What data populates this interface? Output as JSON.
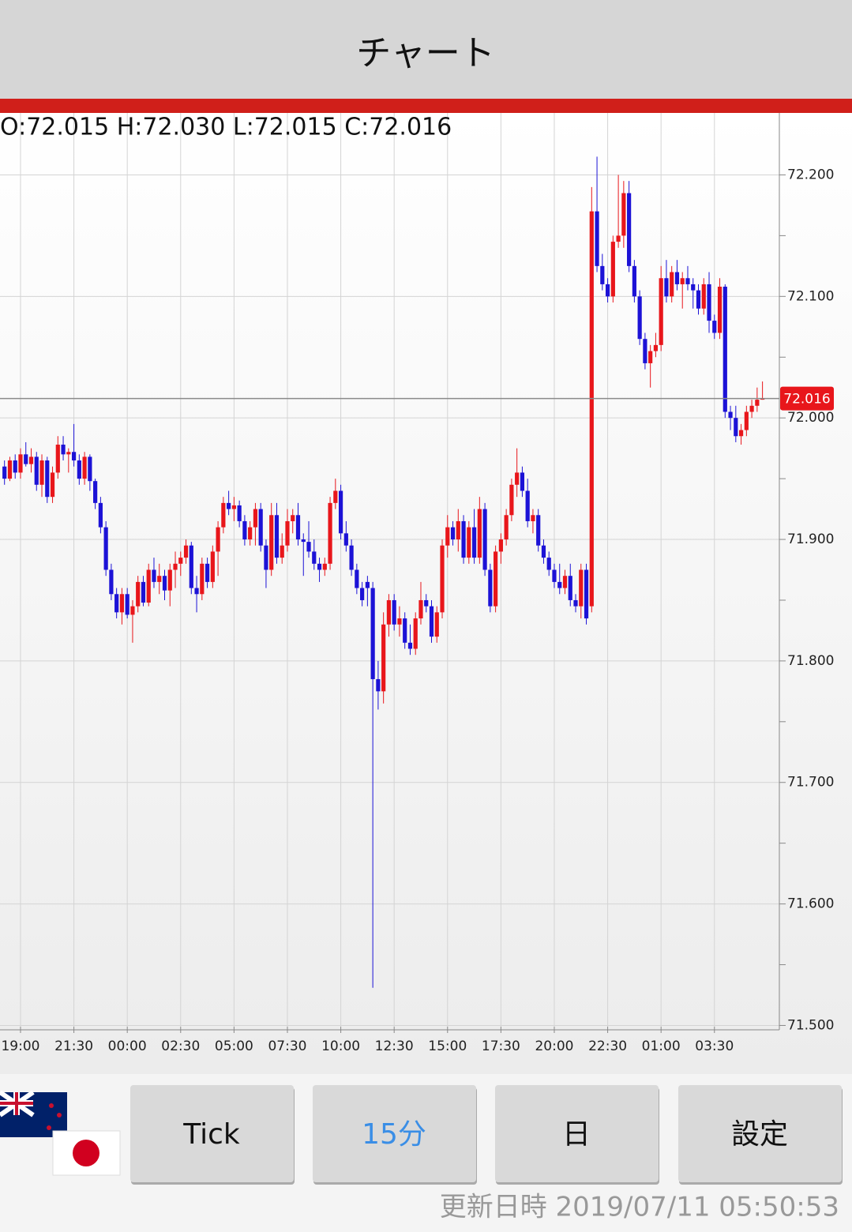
{
  "header": {
    "title": "チャート"
  },
  "chart_data": {
    "type": "candlestick",
    "ohlc_text": "O:72.015 H:72.030 L:72.015 C:72.016",
    "categories": [
      null,
      null,
      null,
      "19:00",
      null,
      null,
      null,
      null,
      null,
      null,
      null,
      null,
      null,
      "21:30",
      null,
      null,
      null,
      null,
      null,
      null,
      null,
      null,
      null,
      "00:00",
      null,
      null,
      null,
      null,
      null,
      null,
      null,
      null,
      null,
      "02:30",
      null,
      null,
      null,
      null,
      null,
      null,
      null,
      null,
      null,
      "05:00",
      null,
      null,
      null,
      null,
      null,
      null,
      null,
      null,
      null,
      "07:30",
      null,
      null,
      null,
      null,
      null,
      null,
      null,
      null,
      null,
      "10:00",
      null,
      null,
      null,
      null,
      null,
      null,
      null,
      null,
      null,
      "12:30",
      null,
      null,
      null,
      null,
      null,
      null,
      null,
      null,
      null,
      "15:00",
      null,
      null,
      null,
      null,
      null,
      null,
      null,
      null,
      null,
      "17:30",
      null,
      null,
      null,
      null,
      null,
      null,
      null,
      null,
      null,
      "20:00",
      null,
      null,
      null,
      null,
      null,
      null,
      null,
      null,
      null,
      "22:30",
      null,
      null,
      null,
      null,
      null,
      null,
      null,
      null,
      null,
      "01:00",
      null,
      null,
      null,
      null,
      null,
      null,
      null,
      null,
      null,
      "03:30",
      null,
      null,
      null,
      null,
      null,
      null,
      null,
      null,
      null
    ],
    "candles": [
      [
        71.96,
        71.965,
        71.945,
        71.95
      ],
      [
        71.95,
        71.968,
        71.948,
        71.965
      ],
      [
        71.965,
        71.97,
        71.95,
        71.955
      ],
      [
        71.955,
        71.975,
        71.95,
        71.97
      ],
      [
        71.97,
        71.98,
        71.96,
        71.962
      ],
      [
        71.962,
        71.975,
        71.955,
        71.968
      ],
      [
        71.968,
        71.972,
        71.94,
        71.945
      ],
      [
        71.945,
        71.97,
        71.935,
        71.965
      ],
      [
        71.965,
        71.968,
        71.93,
        71.935
      ],
      [
        71.935,
        71.96,
        71.93,
        71.955
      ],
      [
        71.955,
        71.985,
        71.95,
        71.978
      ],
      [
        71.978,
        71.985,
        71.965,
        71.97
      ],
      [
        71.97,
        71.975,
        71.955,
        71.972
      ],
      [
        71.972,
        71.995,
        71.96,
        71.965
      ],
      [
        71.965,
        71.97,
        71.945,
        71.95
      ],
      [
        71.95,
        71.972,
        71.945,
        71.968
      ],
      [
        71.968,
        71.97,
        71.94,
        71.948
      ],
      [
        71.948,
        71.95,
        71.925,
        71.93
      ],
      [
        71.93,
        71.935,
        71.905,
        71.91
      ],
      [
        71.91,
        71.915,
        71.87,
        71.875
      ],
      [
        71.875,
        71.88,
        71.85,
        71.855
      ],
      [
        71.855,
        71.86,
        71.835,
        71.84
      ],
      [
        71.84,
        71.86,
        71.83,
        71.855
      ],
      [
        71.855,
        71.86,
        71.835,
        71.838
      ],
      [
        71.838,
        71.85,
        71.815,
        71.845
      ],
      [
        71.845,
        71.87,
        71.84,
        71.865
      ],
      [
        71.865,
        71.87,
        71.845,
        71.848
      ],
      [
        71.848,
        71.88,
        71.845,
        71.875
      ],
      [
        71.875,
        71.885,
        71.86,
        71.865
      ],
      [
        71.865,
        71.88,
        71.855,
        71.87
      ],
      [
        71.87,
        71.875,
        71.85,
        71.858
      ],
      [
        71.858,
        71.88,
        71.845,
        71.875
      ],
      [
        71.875,
        71.89,
        71.86,
        71.88
      ],
      [
        71.88,
        71.89,
        71.87,
        71.885
      ],
      [
        71.885,
        71.9,
        71.88,
        71.895
      ],
      [
        71.895,
        71.898,
        71.855,
        71.86
      ],
      [
        71.86,
        71.87,
        71.84,
        71.855
      ],
      [
        71.855,
        71.885,
        71.85,
        71.88
      ],
      [
        71.88,
        71.885,
        71.86,
        71.865
      ],
      [
        71.865,
        71.895,
        71.86,
        71.89
      ],
      [
        71.89,
        71.915,
        71.87,
        71.91
      ],
      [
        71.91,
        71.935,
        71.905,
        71.93
      ],
      [
        71.93,
        71.94,
        71.92,
        71.925
      ],
      [
        71.925,
        71.935,
        71.915,
        71.928
      ],
      [
        71.928,
        71.932,
        71.91,
        71.915
      ],
      [
        71.915,
        71.92,
        71.895,
        71.9
      ],
      [
        71.9,
        71.915,
        71.895,
        71.91
      ],
      [
        71.91,
        71.93,
        71.895,
        71.925
      ],
      [
        71.925,
        71.93,
        71.89,
        71.895
      ],
      [
        71.895,
        71.9,
        71.86,
        71.875
      ],
      [
        71.875,
        71.93,
        71.87,
        71.92
      ],
      [
        71.92,
        71.93,
        71.88,
        71.885
      ],
      [
        71.885,
        71.905,
        71.88,
        71.895
      ],
      [
        71.895,
        71.925,
        71.89,
        71.915
      ],
      [
        71.915,
        71.925,
        71.905,
        71.92
      ],
      [
        71.92,
        71.93,
        71.895,
        71.9
      ],
      [
        71.9,
        71.905,
        71.87,
        71.898
      ],
      [
        71.898,
        71.915,
        71.885,
        71.89
      ],
      [
        71.89,
        71.9,
        71.875,
        71.88
      ],
      [
        71.88,
        71.885,
        71.865,
        71.875
      ],
      [
        71.875,
        71.885,
        71.87,
        71.88
      ],
      [
        71.88,
        71.935,
        71.875,
        71.93
      ],
      [
        71.93,
        71.95,
        71.925,
        71.94
      ],
      [
        71.94,
        71.945,
        71.9,
        71.905
      ],
      [
        71.905,
        71.915,
        71.89,
        71.895
      ],
      [
        71.895,
        71.9,
        71.87,
        71.875
      ],
      [
        71.875,
        71.88,
        71.855,
        71.86
      ],
      [
        71.86,
        71.865,
        71.845,
        71.85
      ],
      [
        71.865,
        71.87,
        71.845,
        71.86
      ],
      [
        71.86,
        71.865,
        71.531,
        71.785
      ],
      [
        71.785,
        71.8,
        71.76,
        71.775
      ],
      [
        71.775,
        71.84,
        71.765,
        71.83
      ],
      [
        71.83,
        71.855,
        71.82,
        71.85
      ],
      [
        71.85,
        71.855,
        71.825,
        71.83
      ],
      [
        71.83,
        71.845,
        71.82,
        71.835
      ],
      [
        71.835,
        71.84,
        71.81,
        71.815
      ],
      [
        71.815,
        71.83,
        71.805,
        71.81
      ],
      [
        71.81,
        71.84,
        71.805,
        71.835
      ],
      [
        71.835,
        71.865,
        71.83,
        71.85
      ],
      [
        71.85,
        71.855,
        71.84,
        71.845
      ],
      [
        71.845,
        71.85,
        71.815,
        71.82
      ],
      [
        71.82,
        71.845,
        71.815,
        71.84
      ],
      [
        71.84,
        71.9,
        71.835,
        71.895
      ],
      [
        71.895,
        71.92,
        71.885,
        71.91
      ],
      [
        71.91,
        71.915,
        71.895,
        71.9
      ],
      [
        71.9,
        71.925,
        71.89,
        71.915
      ],
      [
        71.915,
        71.92,
        71.88,
        71.885
      ],
      [
        71.885,
        71.915,
        71.88,
        71.91
      ],
      [
        71.91,
        71.925,
        71.88,
        71.885
      ],
      [
        71.885,
        71.935,
        71.88,
        71.925
      ],
      [
        71.925,
        71.93,
        71.87,
        71.875
      ],
      [
        71.875,
        71.88,
        71.84,
        71.845
      ],
      [
        71.845,
        71.895,
        71.84,
        71.89
      ],
      [
        71.89,
        71.905,
        71.88,
        71.9
      ],
      [
        71.9,
        71.925,
        71.895,
        71.92
      ],
      [
        71.92,
        71.95,
        71.915,
        71.945
      ],
      [
        71.945,
        71.975,
        71.935,
        71.955
      ],
      [
        71.955,
        71.96,
        71.935,
        71.94
      ],
      [
        71.94,
        71.95,
        71.91,
        71.915
      ],
      [
        71.915,
        71.925,
        71.905,
        71.92
      ],
      [
        71.92,
        71.925,
        71.89,
        71.895
      ],
      [
        71.895,
        71.9,
        71.88,
        71.885
      ],
      [
        71.885,
        71.89,
        71.87,
        71.875
      ],
      [
        71.875,
        71.88,
        71.86,
        71.865
      ],
      [
        71.865,
        71.88,
        71.855,
        71.86
      ],
      [
        71.86,
        71.875,
        71.855,
        71.87
      ],
      [
        71.87,
        71.88,
        71.845,
        71.85
      ],
      [
        71.85,
        71.855,
        71.84,
        71.845
      ],
      [
        71.845,
        71.88,
        71.835,
        71.875
      ],
      [
        71.875,
        71.88,
        71.83,
        71.835
      ],
      [
        71.845,
        72.19,
        71.84,
        72.17
      ],
      [
        72.17,
        72.215,
        72.12,
        72.125
      ],
      [
        72.125,
        72.135,
        72.105,
        72.11
      ],
      [
        72.11,
        72.115,
        72.095,
        72.1
      ],
      [
        72.1,
        72.15,
        72.095,
        72.145
      ],
      [
        72.145,
        72.2,
        72.14,
        72.15
      ],
      [
        72.15,
        72.195,
        72.14,
        72.185
      ],
      [
        72.185,
        72.195,
        72.12,
        72.125
      ],
      [
        72.125,
        72.13,
        72.095,
        72.1
      ],
      [
        72.1,
        72.105,
        72.06,
        72.065
      ],
      [
        72.065,
        72.07,
        72.04,
        72.045
      ],
      [
        72.045,
        72.06,
        72.025,
        72.055
      ],
      [
        72.055,
        72.07,
        72.05,
        72.06
      ],
      [
        72.06,
        72.125,
        72.055,
        72.115
      ],
      [
        72.115,
        72.13,
        72.095,
        72.1
      ],
      [
        72.1,
        72.125,
        72.095,
        72.12
      ],
      [
        72.12,
        72.13,
        72.105,
        72.11
      ],
      [
        72.11,
        72.12,
        72.09,
        72.115
      ],
      [
        72.115,
        72.125,
        72.105,
        72.11
      ],
      [
        72.11,
        72.115,
        72.09,
        72.105
      ],
      [
        72.105,
        72.11,
        72.085,
        72.09
      ],
      [
        72.09,
        72.115,
        72.085,
        72.11
      ],
      [
        72.11,
        72.12,
        72.07,
        72.08
      ],
      [
        72.08,
        72.085,
        72.065,
        72.07
      ],
      [
        72.07,
        72.115,
        72.065,
        72.108
      ],
      [
        72.108,
        72.11,
        72.0,
        72.005
      ],
      [
        72.005,
        72.01,
        71.99,
        72.0
      ],
      [
        72.0,
        72.01,
        71.98,
        71.985
      ],
      [
        71.985,
        71.995,
        71.978,
        71.99
      ],
      [
        71.99,
        72.01,
        71.985,
        72.005
      ],
      [
        72.005,
        72.015,
        72.0,
        72.01
      ],
      [
        72.01,
        72.025,
        72.005,
        72.015
      ],
      [
        72.015,
        72.03,
        72.015,
        72.016
      ]
    ],
    "up_color": "#e8161b",
    "down_color": "#1c12d6",
    "ylim": [
      71.499,
      72.251
    ],
    "yticks": [
      {
        "value": 71.5,
        "label": "71.500"
      },
      {
        "value": 71.6,
        "label": "71.600"
      },
      {
        "value": 71.7,
        "label": "71.700"
      },
      {
        "value": 71.8,
        "label": "71.800"
      },
      {
        "value": 71.9,
        "label": "71.900"
      },
      {
        "value": 72.0,
        "label": "72.000"
      },
      {
        "value": 72.1,
        "label": "72.100"
      },
      {
        "value": 72.2,
        "label": "72.200"
      }
    ],
    "yminorticks": [
      71.55,
      71.65,
      71.75,
      71.85,
      71.95,
      72.05,
      72.15
    ],
    "current_price": {
      "value": 72.016,
      "label": "72.016"
    },
    "grid": true
  },
  "buttons": [
    "Tick",
    "15分",
    "日",
    "設定"
  ],
  "updated": "更新日時 2019/07/11 05:50:53"
}
